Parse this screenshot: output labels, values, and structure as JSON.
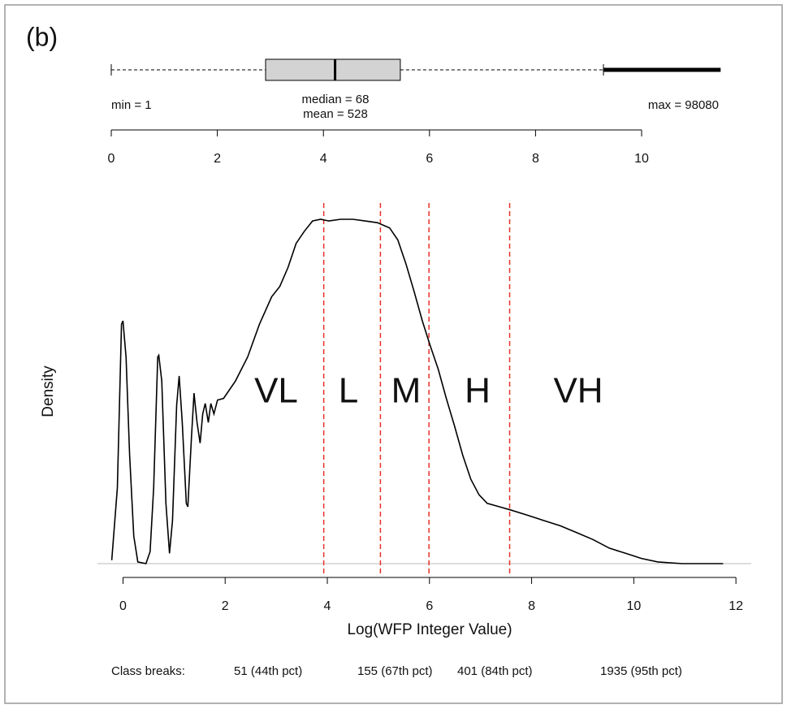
{
  "chart_data": [
    {
      "type": "boxplot",
      "title": "(b)",
      "whisker_low": 0,
      "q1": 2.91,
      "median": 4.22,
      "q3": 5.45,
      "whisker_high": 9.28,
      "max": 11.49,
      "annotations": [
        "min = 1",
        "median = 68",
        "mean = 528",
        "max = 98080"
      ],
      "xlim": [
        0,
        11.6
      ],
      "xticks": [
        0,
        2,
        4,
        6,
        8,
        10
      ],
      "color": "#d3d3d3"
    },
    {
      "type": "line",
      "xlabel": "Log(WFP Integer Value)",
      "ylabel": "Density",
      "x": [
        -0.22,
        -0.11,
        -0.03,
        0,
        0.06,
        0.13,
        0.21,
        0.29,
        0.45,
        0.53,
        0.6,
        0.68,
        0.7,
        0.76,
        0.84,
        0.91,
        0.97,
        1.05,
        1.1,
        1.16,
        1.24,
        1.27,
        1.34,
        1.39,
        1.45,
        1.51,
        1.56,
        1.61,
        1.67,
        1.72,
        1.78,
        1.85,
        1.97,
        2.2,
        2.44,
        2.67,
        2.91,
        3.07,
        3.23,
        3.39,
        3.55,
        3.71,
        3.87,
        4.03,
        4.26,
        4.5,
        4.74,
        4.98,
        5.22,
        5.38,
        5.54,
        5.7,
        5.86,
        6.01,
        6.17,
        6.33,
        6.49,
        6.65,
        6.81,
        6.97,
        7.13,
        7.37,
        7.61,
        7.93,
        8.24,
        8.56,
        8.88,
        9.2,
        9.52,
        9.84,
        10.15,
        10.47,
        10.95,
        11.43,
        11.75
      ],
      "values": [
        0.002,
        0.044,
        0.139,
        0.141,
        0.12,
        0.063,
        0.016,
        0.001,
        0,
        0.007,
        0.044,
        0.12,
        0.121,
        0.106,
        0.035,
        0.006,
        0.025,
        0.092,
        0.109,
        0.082,
        0.035,
        0.033,
        0.073,
        0.099,
        0.082,
        0.07,
        0.087,
        0.093,
        0.082,
        0.093,
        0.087,
        0.095,
        0.096,
        0.106,
        0.12,
        0.139,
        0.155,
        0.161,
        0.172,
        0.186,
        0.193,
        0.199,
        0.2,
        0.199,
        0.2,
        0.2,
        0.199,
        0.198,
        0.195,
        0.188,
        0.174,
        0.158,
        0.141,
        0.127,
        0.113,
        0.096,
        0.08,
        0.063,
        0.049,
        0.04,
        0.035,
        0.033,
        0.031,
        0.028,
        0.025,
        0.022,
        0.018,
        0.014,
        0.009,
        0.006,
        0.003,
        0.001,
        0,
        0,
        0
      ],
      "color": "#000000",
      "xlim": [
        -0.5,
        12.3
      ],
      "ylim": [
        0,
        0.22
      ],
      "xticks": [
        0,
        2,
        4,
        6,
        8,
        10,
        12
      ],
      "vlines": {
        "x": [
          3.93,
          5.04,
          5.99,
          7.57
        ],
        "color": "#e8302a"
      },
      "class_labels": [
        "VL",
        "L",
        "M",
        "H",
        "VH"
      ],
      "footer": [
        "Class breaks:",
        "51 (44th pct)",
        "155 (67th pct)",
        "401 (84th pct)",
        "1935 (95th pct)"
      ]
    }
  ]
}
